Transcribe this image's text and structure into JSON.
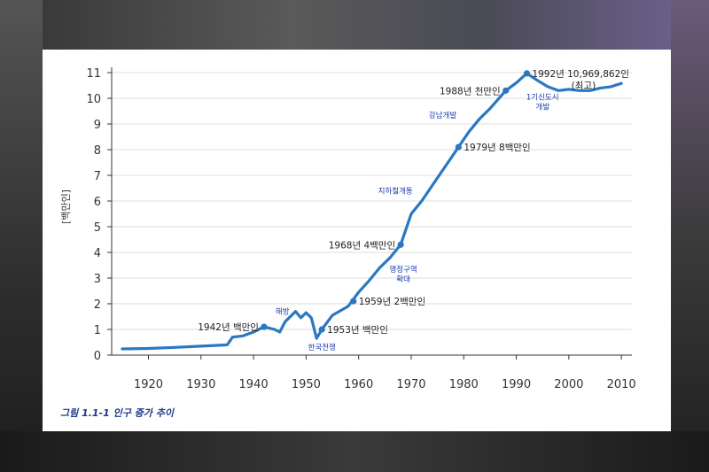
{
  "caption": "그림 1.1-1 인구 증가 추이",
  "chart_data": {
    "type": "line",
    "ylabel": "[백만인]",
    "xlim": [
      1913,
      2012
    ],
    "ylim": [
      0,
      11
    ],
    "x_ticks": [
      1920,
      1930,
      1940,
      1950,
      1960,
      1970,
      1980,
      1990,
      2000,
      2010
    ],
    "y_ticks": [
      0,
      1,
      2,
      3,
      4,
      5,
      6,
      7,
      8,
      9,
      10,
      11
    ],
    "grid": "horizontal",
    "line_color": "#2a78c2",
    "series": [
      {
        "x": [
          1915,
          1920,
          1925,
          1930,
          1935,
          1936,
          1938,
          1940,
          1942,
          1944,
          1945,
          1946,
          1948,
          1949,
          1950,
          1951,
          1952,
          1953,
          1955,
          1958,
          1960,
          1962,
          1964,
          1966,
          1968,
          1970,
          1972,
          1975,
          1978,
          1979,
          1981,
          1983,
          1985,
          1988,
          1990,
          1992,
          1994,
          1996,
          1998,
          2000,
          2002,
          2004,
          2006,
          2008,
          2010
        ],
        "y": [
          0.24,
          0.26,
          0.3,
          0.35,
          0.4,
          0.7,
          0.75,
          0.9,
          1.1,
          1.0,
          0.9,
          1.3,
          1.7,
          1.45,
          1.65,
          1.45,
          0.65,
          1.0,
          1.55,
          1.9,
          2.45,
          2.9,
          3.4,
          3.8,
          4.3,
          5.5,
          6.0,
          6.9,
          7.8,
          8.1,
          8.7,
          9.2,
          9.6,
          10.3,
          10.6,
          10.97,
          10.7,
          10.45,
          10.3,
          10.35,
          10.3,
          10.3,
          10.4,
          10.45,
          10.58
        ]
      }
    ],
    "markers": [
      {
        "x": 1942,
        "y": 1.1,
        "label": "1942년 백만인",
        "anchor": "end"
      },
      {
        "x": 1953,
        "y": 1.0,
        "label": "1953년 백만인",
        "anchor": "start"
      },
      {
        "x": 1959,
        "y": 2.1,
        "label": "1959년 2백만인",
        "anchor": "start"
      },
      {
        "x": 1968,
        "y": 4.3,
        "label": "1968년 4백만인",
        "anchor": "end"
      },
      {
        "x": 1979,
        "y": 8.1,
        "label": "1979년 8백만인",
        "anchor": "start"
      },
      {
        "x": 1988,
        "y": 10.3,
        "label": "1988년 천만인",
        "anchor": "end"
      },
      {
        "x": 1992,
        "y": 10.97,
        "label": "1992년 10,969,862인",
        "label2": "(최고)",
        "anchor": "start"
      }
    ],
    "events": [
      {
        "x": 1945.5,
        "y": 1.6,
        "label": "해방"
      },
      {
        "x": 1953.0,
        "y": 0.2,
        "label": "한국전쟁"
      },
      {
        "x": 1968.5,
        "y": 3.25,
        "label": "행정구역",
        "label2": "확대"
      },
      {
        "x": 1967.0,
        "y": 6.3,
        "label": "지하철개통"
      },
      {
        "x": 1976.0,
        "y": 9.25,
        "label": "강남개발"
      },
      {
        "x": 1995.0,
        "y": 9.95,
        "label": "1기신도시",
        "label2": "개발"
      }
    ]
  }
}
